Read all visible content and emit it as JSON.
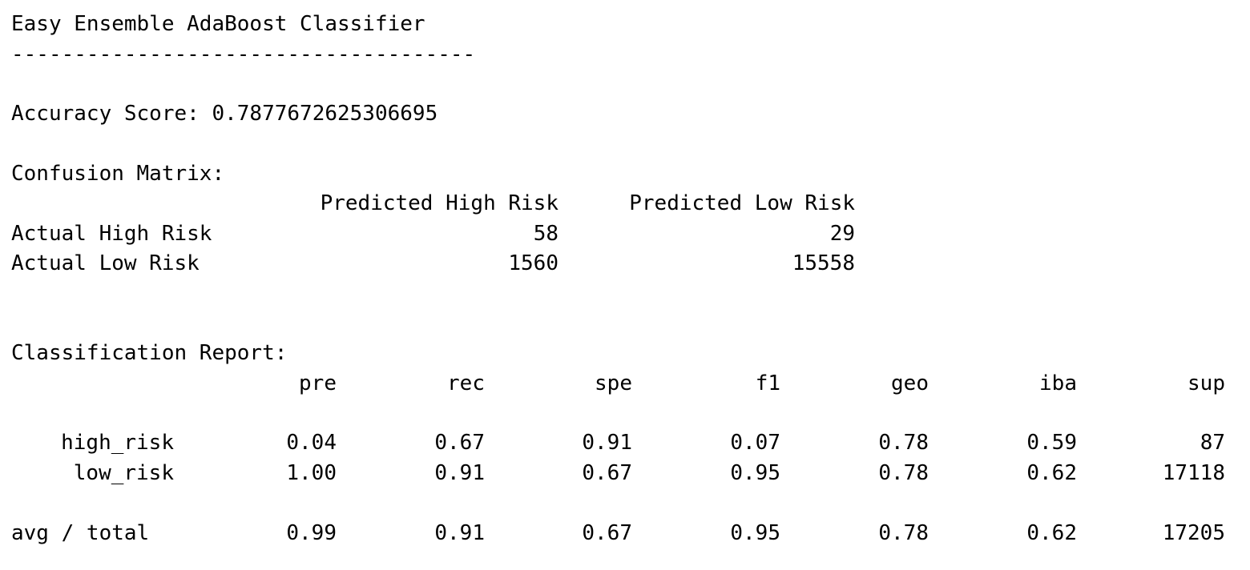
{
  "title": "Easy Ensemble AdaBoost Classifier",
  "separator": "-------------------------------------",
  "accuracy": {
    "label": "Accuracy Score:",
    "value": "0.7877672625306695"
  },
  "confusion_matrix": {
    "heading": "Confusion Matrix:",
    "col_headers": [
      "Predicted High Risk",
      "Predicted Low Risk"
    ],
    "rows": [
      {
        "label": "Actual High Risk",
        "values": [
          "58",
          "29"
        ]
      },
      {
        "label": "Actual Low Risk",
        "values": [
          "1560",
          "15558"
        ]
      }
    ]
  },
  "classification_report": {
    "heading": "Classification Report:",
    "col_headers": [
      "pre",
      "rec",
      "spe",
      "f1",
      "geo",
      "iba",
      "sup"
    ],
    "rows": [
      {
        "label": "high_risk",
        "values": [
          "0.04",
          "0.67",
          "0.91",
          "0.07",
          "0.78",
          "0.59",
          "87"
        ]
      },
      {
        "label": "low_risk",
        "values": [
          "1.00",
          "0.91",
          "0.67",
          "0.95",
          "0.78",
          "0.62",
          "17118"
        ]
      }
    ],
    "avg_row": {
      "label": "avg / total",
      "values": [
        "0.99",
        "0.91",
        "0.67",
        "0.95",
        "0.78",
        "0.62",
        "17205"
      ]
    }
  }
}
